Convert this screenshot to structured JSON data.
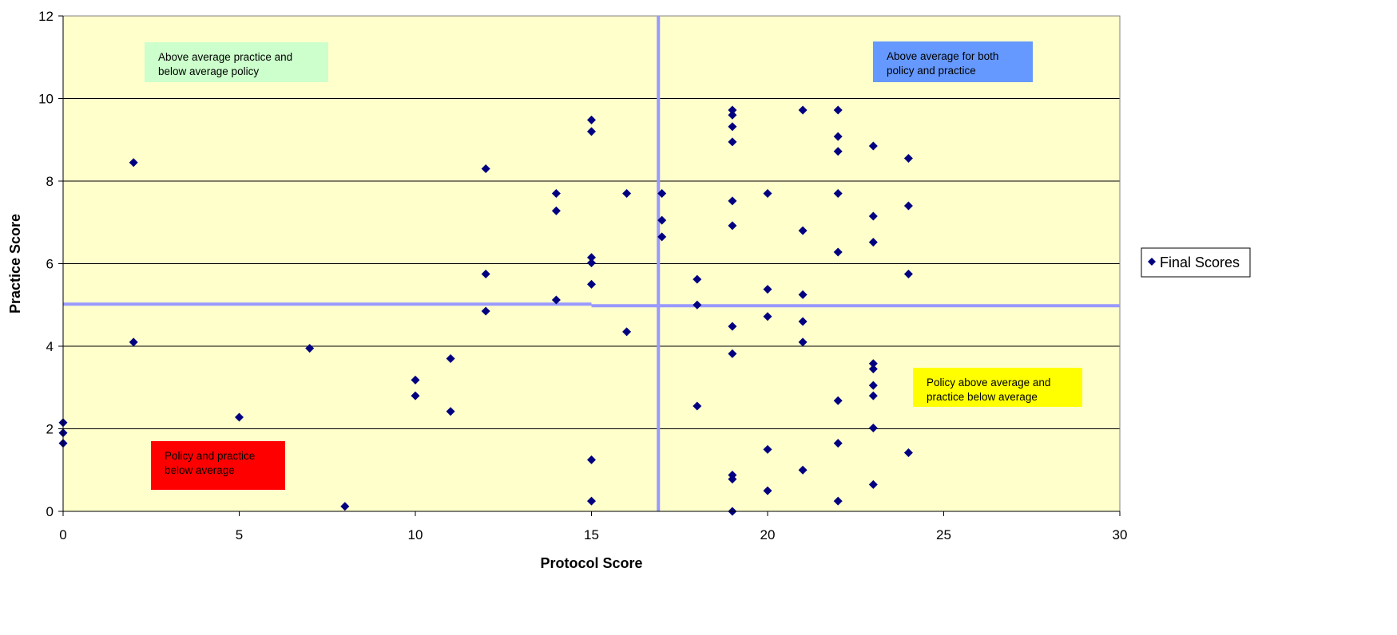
{
  "chart_data": {
    "type": "scatter",
    "xlabel": "Protocol Score",
    "ylabel": "Practice Score",
    "xlim": [
      0,
      30
    ],
    "ylim": [
      0,
      12
    ],
    "xticks": [
      0,
      5,
      10,
      15,
      20,
      25,
      30
    ],
    "yticks": [
      0,
      2,
      4,
      6,
      8,
      10,
      12
    ],
    "grid": "horizontal",
    "legend_position": "right",
    "colors": {
      "plot_background": "#FFFFCC",
      "marker": "#000080",
      "average_line": "#9999FF"
    },
    "average_lines": {
      "x": 16.9,
      "y": 5.0
    },
    "regions": [
      {
        "text": [
          "Above average practice and",
          "below average policy"
        ],
        "color": "#CCFFCC"
      },
      {
        "text": [
          "Above average for both",
          "policy and practice"
        ],
        "color": "#6699FF"
      },
      {
        "text": [
          "Policy above average and",
          "practice below average"
        ],
        "color": "#FFFF00"
      },
      {
        "text": [
          "Policy and practice",
          "below average"
        ],
        "color": "#FF0000"
      }
    ],
    "series": [
      {
        "name": "Final Scores",
        "marker": "diamond",
        "points": [
          [
            0,
            2.15
          ],
          [
            0,
            1.9
          ],
          [
            0,
            1.65
          ],
          [
            2,
            8.45
          ],
          [
            2,
            4.1
          ],
          [
            5,
            2.28
          ],
          [
            7,
            3.95
          ],
          [
            8,
            0.12
          ],
          [
            10,
            3.18
          ],
          [
            10,
            2.8
          ],
          [
            11,
            3.7
          ],
          [
            11,
            2.42
          ],
          [
            12,
            8.3
          ],
          [
            12,
            5.75
          ],
          [
            12,
            4.85
          ],
          [
            14,
            7.7
          ],
          [
            14,
            7.28
          ],
          [
            14,
            5.12
          ],
          [
            15,
            9.48
          ],
          [
            15,
            9.2
          ],
          [
            15,
            6.15
          ],
          [
            15,
            6.02
          ],
          [
            15,
            5.5
          ],
          [
            15,
            1.25
          ],
          [
            15,
            0.25
          ],
          [
            16,
            7.7
          ],
          [
            16,
            4.35
          ],
          [
            17,
            7.7
          ],
          [
            17,
            7.05
          ],
          [
            17,
            6.65
          ],
          [
            18,
            5.62
          ],
          [
            18,
            5.0
          ],
          [
            18,
            2.55
          ],
          [
            19,
            9.72
          ],
          [
            19,
            9.6
          ],
          [
            19,
            9.32
          ],
          [
            19,
            8.95
          ],
          [
            19,
            7.52
          ],
          [
            19,
            6.92
          ],
          [
            19,
            4.48
          ],
          [
            19,
            3.82
          ],
          [
            19,
            0.88
          ],
          [
            19,
            0.78
          ],
          [
            19,
            0.0
          ],
          [
            20,
            7.7
          ],
          [
            20,
            5.38
          ],
          [
            20,
            4.72
          ],
          [
            20,
            1.5
          ],
          [
            20,
            0.5
          ],
          [
            21,
            9.72
          ],
          [
            21,
            6.8
          ],
          [
            21,
            5.25
          ],
          [
            21,
            4.6
          ],
          [
            21,
            4.1
          ],
          [
            21,
            1.0
          ],
          [
            22,
            9.72
          ],
          [
            22,
            9.08
          ],
          [
            22,
            8.72
          ],
          [
            22,
            7.7
          ],
          [
            22,
            6.28
          ],
          [
            22,
            2.68
          ],
          [
            22,
            1.65
          ],
          [
            22,
            0.25
          ],
          [
            23,
            8.85
          ],
          [
            23,
            7.15
          ],
          [
            23,
            6.52
          ],
          [
            23,
            3.58
          ],
          [
            23,
            3.45
          ],
          [
            23,
            3.05
          ],
          [
            23,
            2.8
          ],
          [
            23,
            2.02
          ],
          [
            23,
            0.65
          ],
          [
            24,
            8.55
          ],
          [
            24,
            7.4
          ],
          [
            24,
            5.75
          ],
          [
            24,
            1.42
          ]
        ]
      }
    ]
  }
}
